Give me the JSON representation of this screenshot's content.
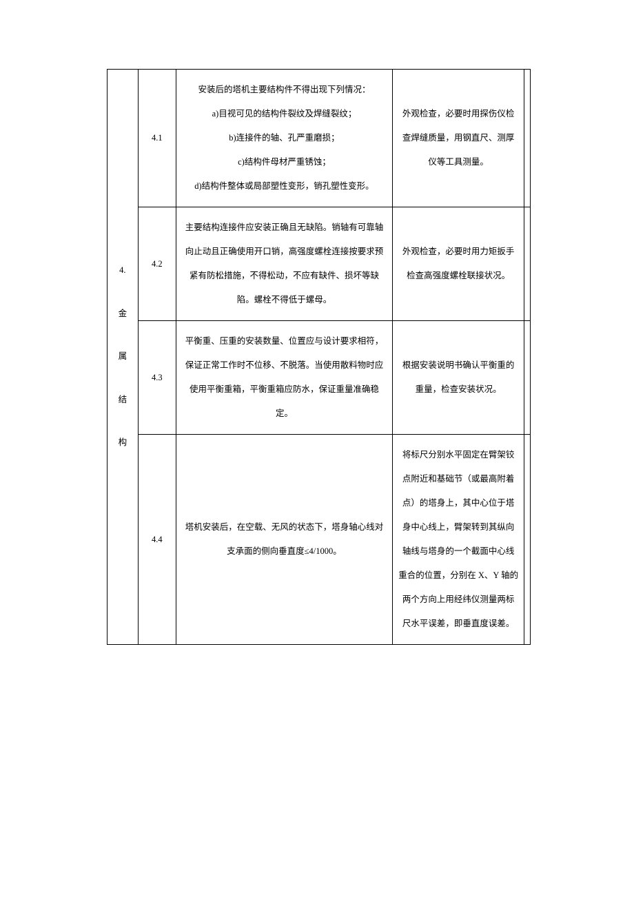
{
  "category": {
    "number": "4.",
    "title_chars": [
      "金",
      "属",
      "结",
      "构"
    ]
  },
  "rows": [
    {
      "num": "4.1",
      "content_lines": [
        "安装后的塔机主要结构件不得出现下列情况：",
        "a)目视可见的结构件裂纹及焊缝裂纹；",
        "b)连接件的轴、孔严重磨损；",
        "c)结构件母材严重锈蚀；",
        "d)结构件整体或局部塑性变形，销孔塑性变形。"
      ],
      "method": "外观检查，必要时用探伤仪检查焊缝质量，用钢直尺、测厚仪等工具测量。"
    },
    {
      "num": "4.2",
      "content": "主要结构连接件应安装正确且无缺陷。销轴有可靠轴向止动且正确使用开口销，高强度螺栓连接按要求预紧有防松措施，不得松动，不应有缺件、损坏等缺陷。螺栓不得低于螺母。",
      "method": "外观检查，必要时用力矩扳手检查高强度螺栓联接状况。"
    },
    {
      "num": "4.3",
      "content": "平衡重、压重的安装数量、位置应与设计要求相符，保证正常工作时不位移、不脱落。当使用散料物时应使用平衡重箱，平衡重箱应防水，保证重量准确稳定。",
      "method": "根据安装说明书确认平衡重的重量，检查安装状况。"
    },
    {
      "num": "4.4",
      "content": "塔机安装后，在空载、无风的状态下，塔身轴心线对支承面的侧向垂直度≤4/1000。",
      "method": "将标尺分别水平固定在臂架铰点附近和基础节（或最高附着点）的塔身上，其中心位于塔身中心线上，臂架转到其纵向轴线与塔身的一个截面中心线重合的位置，分别在 X、Y 轴的两个方向上用经纬仪测量两标尺水平误差，即垂直度误差。"
    }
  ]
}
